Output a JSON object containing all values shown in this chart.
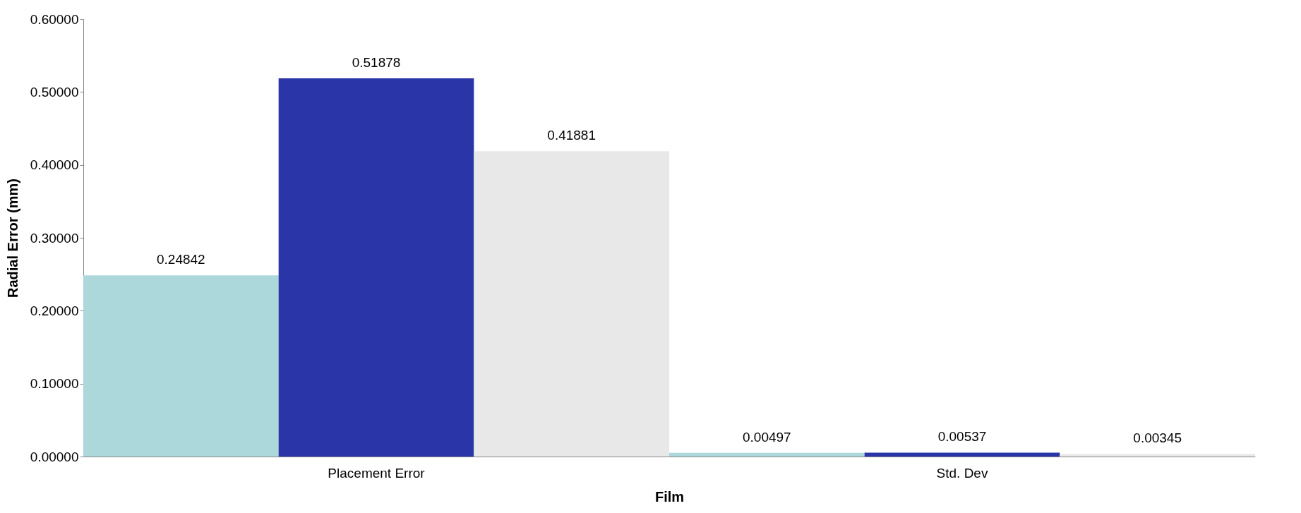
{
  "chart_data": {
    "type": "bar",
    "xlabel": "Film",
    "ylabel": "Radial Error (mm)",
    "categories": [
      "Placement Error",
      "Std. Dev"
    ],
    "series": [
      {
        "color": "#acd8dc",
        "values": [
          0.24842,
          0.00497
        ]
      },
      {
        "color": "#2a35a8",
        "values": [
          0.51878,
          0.00537
        ]
      },
      {
        "color": "#e8e8e8",
        "values": [
          0.41881,
          0.00345
        ]
      }
    ],
    "ylim": [
      0,
      0.6
    ],
    "yticks": [
      {
        "value": 0,
        "label": "0.00000"
      },
      {
        "value": 0.1,
        "label": "0.10000"
      },
      {
        "value": 0.2,
        "label": "0.20000"
      },
      {
        "value": 0.3,
        "label": "0.30000"
      },
      {
        "value": 0.4,
        "label": "0.40000"
      },
      {
        "value": 0.5,
        "label": "0.50000"
      },
      {
        "value": 0.6,
        "label": "0.60000"
      }
    ],
    "data_labels": true,
    "grid": false,
    "legend": false
  }
}
